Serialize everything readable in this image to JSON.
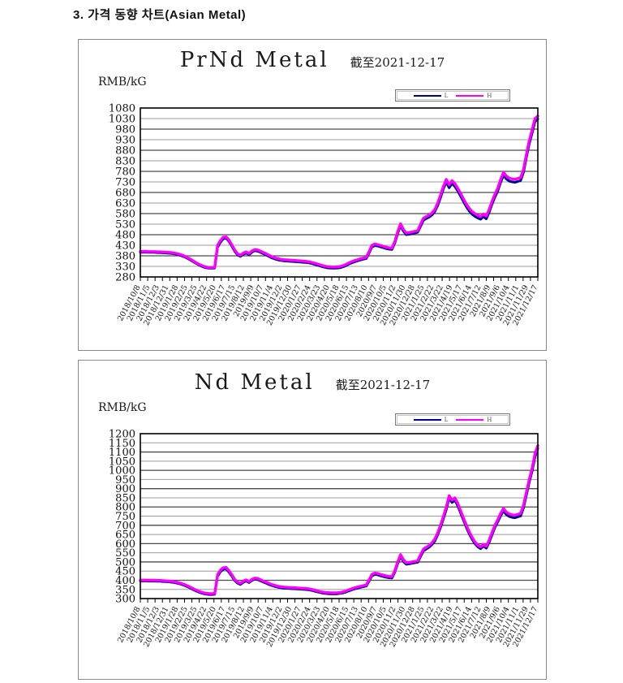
{
  "page_title": "3. 가격 동향 차트(Asian Metal)",
  "chart_data": [
    {
      "type": "line",
      "title": "PrNd Metal",
      "subtitle": "截至2021-12-17",
      "ylabel": "RMB/kG",
      "ylim": [
        280,
        1080
      ],
      "ytick_step": 50,
      "grid": true,
      "legend_position": "top-right",
      "x_labels": [
        "2018/10/8",
        "2018/11/5",
        "2018/12/3",
        "2018/12/31",
        "2019/1/28",
        "2019/2/25",
        "2019/3/25",
        "2019/4/22",
        "2019/5/20",
        "2019/6/17",
        "2019/7/15",
        "2019/8/12",
        "2019/9/9",
        "2019/10/7",
        "2019/11/4",
        "2019/12/2",
        "2019/12/30",
        "2020/1/27",
        "2020/2/24",
        "2020/3/23",
        "2020/4/20",
        "2020/5/18",
        "2020/6/15",
        "2020/7/13",
        "2020/8/10",
        "2020/9/7",
        "2020/10/5",
        "2020/11/2",
        "2020/11/30",
        "2020/12/28",
        "2021/1/25",
        "2021/2/22",
        "2021/3/22",
        "2021/4/19",
        "2021/5/17",
        "2021/6/14",
        "2021/7/12",
        "2021/8/9",
        "2021/9/6",
        "2021/10/4",
        "2021/11/1",
        "2021/11/29",
        "2021/12/17"
      ],
      "series": [
        {
          "name": "L",
          "color": "#000090",
          "values": [
            396,
            397,
            397,
            396,
            396,
            396,
            395,
            395,
            394,
            393,
            392,
            391,
            389,
            386,
            382,
            377,
            371,
            364,
            356,
            348,
            340,
            333,
            327,
            323,
            321,
            321,
            322,
            420,
            444,
            460,
            463,
            448,
            425,
            402,
            384,
            377,
            387,
            393,
            385,
            397,
            404,
            402,
            396,
            390,
            384,
            377,
            370,
            365,
            361,
            358,
            356,
            355,
            354,
            353,
            352,
            351,
            350,
            349,
            348,
            346,
            343,
            339,
            335,
            331,
            327,
            324,
            322,
            321,
            321,
            322,
            324,
            328,
            334,
            341,
            347,
            352,
            356,
            360,
            364,
            367,
            393,
            422,
            428,
            426,
            422,
            418,
            414,
            411,
            410,
            440,
            486,
            522,
            496,
            480,
            482,
            485,
            488,
            491,
            520,
            548,
            556,
            563,
            573,
            590,
            618,
            656,
            698,
            728,
            702,
            722,
            708,
            686,
            662,
            637,
            612,
            592,
            577,
            567,
            559,
            553,
            565,
            555,
            587,
            625,
            658,
            686,
            728,
            760,
            744,
            734,
            730,
            728,
            732,
            736,
            775,
            845,
            910,
            960,
            1015,
            1028
          ]
        },
        {
          "name": "H",
          "color": "#FF00FF",
          "values": [
            400,
            401,
            401,
            400,
            400,
            400,
            399,
            399,
            398,
            397,
            396,
            395,
            393,
            390,
            386,
            381,
            375,
            368,
            360,
            352,
            344,
            337,
            331,
            327,
            325,
            325,
            326,
            430,
            452,
            468,
            470,
            455,
            432,
            408,
            390,
            383,
            393,
            399,
            391,
            403,
            410,
            408,
            402,
            396,
            390,
            383,
            376,
            371,
            367,
            364,
            362,
            361,
            360,
            359,
            358,
            357,
            356,
            355,
            354,
            352,
            349,
            345,
            341,
            337,
            333,
            330,
            328,
            327,
            327,
            328,
            330,
            334,
            340,
            347,
            353,
            358,
            362,
            366,
            370,
            373,
            400,
            430,
            436,
            433,
            429,
            425,
            421,
            418,
            417,
            448,
            495,
            532,
            505,
            488,
            490,
            493,
            496,
            499,
            530,
            558,
            566,
            573,
            583,
            600,
            630,
            668,
            710,
            742,
            716,
            736,
            722,
            700,
            676,
            650,
            625,
            605,
            590,
            580,
            572,
            566,
            578,
            568,
            600,
            638,
            672,
            700,
            742,
            775,
            758,
            748,
            744,
            742,
            746,
            750,
            790,
            860,
            925,
            975,
            1030,
            1042
          ]
        }
      ]
    },
    {
      "type": "line",
      "title": "Nd Metal",
      "subtitle": "截至2021-12-17",
      "ylabel": "RMB/kG",
      "ylim": [
        300,
        1200
      ],
      "ytick_step": 50,
      "grid": true,
      "legend_position": "top-right",
      "x_labels": [
        "2018/10/8",
        "2018/11/5",
        "2018/12/3",
        "2018/12/31",
        "2019/1/28",
        "2019/2/25",
        "2019/3/25",
        "2019/4/22",
        "2019/5/20",
        "2019/6/17",
        "2019/7/15",
        "2019/8/12",
        "2019/9/9",
        "2019/10/7",
        "2019/11/4",
        "2019/12/2",
        "2019/12/30",
        "2020/1/27",
        "2020/2/24",
        "2020/3/23",
        "2020/4/20",
        "2020/5/18",
        "2020/6/15",
        "2020/7/13",
        "2020/8/10",
        "2020/9/7",
        "2020/10/5",
        "2020/11/2",
        "2020/11/30",
        "2020/12/28",
        "2021/1/25",
        "2021/2/22",
        "2021/3/22",
        "2021/4/19",
        "2021/5/17",
        "2021/6/14",
        "2021/7/12",
        "2021/8/9",
        "2021/9/6",
        "2021/10/4",
        "2021/11/1",
        "2021/11/29",
        "2021/12/17"
      ],
      "series": [
        {
          "name": "L",
          "color": "#000090",
          "values": [
            395,
            396,
            396,
            395,
            395,
            395,
            394,
            394,
            393,
            392,
            391,
            389,
            387,
            383,
            379,
            374,
            368,
            361,
            353,
            345,
            338,
            332,
            327,
            324,
            322,
            322,
            323,
            421,
            446,
            459,
            461,
            444,
            422,
            398,
            384,
            377,
            389,
            396,
            387,
            399,
            406,
            404,
            397,
            390,
            384,
            377,
            371,
            366,
            362,
            359,
            357,
            356,
            355,
            354,
            353,
            352,
            351,
            350,
            349,
            347,
            344,
            340,
            336,
            332,
            329,
            327,
            326,
            325,
            325,
            326,
            328,
            331,
            336,
            342,
            348,
            353,
            357,
            361,
            365,
            368,
            395,
            424,
            432,
            429,
            424,
            420,
            416,
            413,
            412,
            444,
            491,
            530,
            503,
            487,
            489,
            492,
            495,
            498,
            530,
            560,
            570,
            580,
            595,
            614,
            648,
            688,
            737,
            786,
            848,
            824,
            836,
            806,
            767,
            728,
            688,
            653,
            624,
            600,
            582,
            572,
            586,
            575,
            608,
            648,
            688,
            718,
            752,
            778,
            758,
            748,
            743,
            741,
            746,
            751,
            795,
            864,
            934,
            994,
            1072,
            1120
          ]
        },
        {
          "name": "H",
          "color": "#FF00FF",
          "values": [
            400,
            401,
            401,
            400,
            400,
            400,
            399,
            399,
            398,
            397,
            396,
            394,
            392,
            388,
            384,
            379,
            373,
            366,
            358,
            350,
            343,
            337,
            332,
            329,
            327,
            327,
            328,
            430,
            455,
            468,
            470,
            452,
            430,
            405,
            390,
            383,
            395,
            402,
            393,
            405,
            412,
            410,
            403,
            396,
            390,
            383,
            377,
            372,
            368,
            365,
            363,
            362,
            361,
            360,
            359,
            358,
            357,
            356,
            355,
            353,
            350,
            346,
            342,
            338,
            335,
            333,
            332,
            331,
            331,
            332,
            334,
            337,
            342,
            348,
            354,
            359,
            363,
            367,
            371,
            374,
            402,
            432,
            440,
            437,
            432,
            428,
            424,
            421,
            420,
            452,
            500,
            540,
            512,
            495,
            497,
            500,
            503,
            506,
            540,
            570,
            580,
            590,
            605,
            625,
            660,
            700,
            750,
            800,
            862,
            838,
            850,
            820,
            780,
            740,
            700,
            665,
            635,
            610,
            592,
            582,
            596,
            585,
            620,
            660,
            700,
            730,
            765,
            792,
            772,
            762,
            757,
            755,
            760,
            765,
            810,
            880,
            950,
            1010,
            1090,
            1135
          ]
        }
      ]
    }
  ]
}
